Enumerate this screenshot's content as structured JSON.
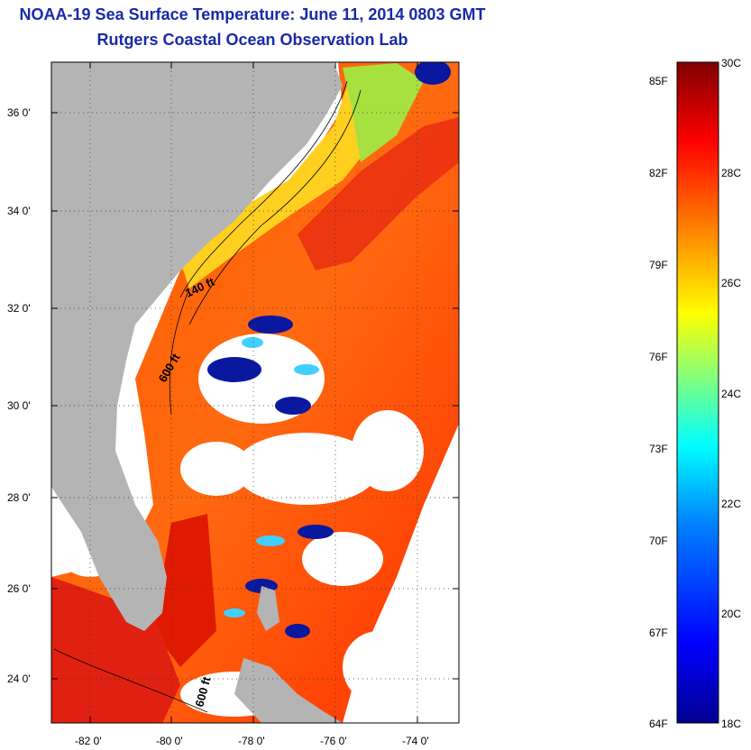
{
  "title": "NOAA-19 Sea Surface Temperature:  June 11, 2014 0803 GMT",
  "subtitle": "Rutgers Coastal Ocean Observation Lab",
  "lat_labels": [
    "36 0'",
    "34 0'",
    "32 0'",
    "30 0'",
    "28 0'",
    "26 0'",
    "24 0'"
  ],
  "lon_labels": [
    "-82 0'",
    "-80 0'",
    "-78 0'",
    "-76 0'",
    "-74 0'"
  ],
  "contour_labels": [
    "140 ft",
    "600 ft",
    "600 ft"
  ],
  "colorbar": {
    "f_labels": [
      "85F",
      "82F",
      "79F",
      "76F",
      "73F",
      "70F",
      "67F",
      "64F"
    ],
    "c_labels": [
      "30C",
      "28C",
      "26C",
      "24C",
      "22C",
      "20C",
      "18C"
    ],
    "range_c": [
      18,
      30
    ],
    "colors": [
      "#00008f",
      "#0000ff",
      "#0080ff",
      "#00ffff",
      "#80ff80",
      "#ffff00",
      "#ff8000",
      "#ff0000",
      "#800000"
    ]
  },
  "colors": {
    "land": "#b4b4b4",
    "no_data": "#ffffff",
    "title": "#1a2aa8"
  }
}
